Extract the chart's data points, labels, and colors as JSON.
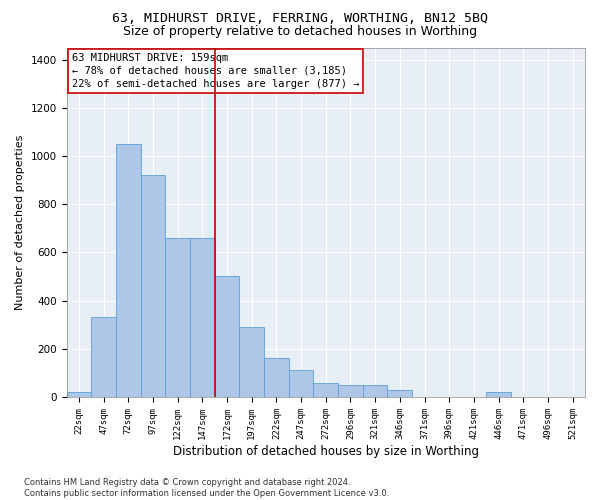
{
  "title1": "63, MIDHURST DRIVE, FERRING, WORTHING, BN12 5BQ",
  "title2": "Size of property relative to detached houses in Worthing",
  "xlabel": "Distribution of detached houses by size in Worthing",
  "ylabel": "Number of detached properties",
  "categories": [
    "22sqm",
    "47sqm",
    "72sqm",
    "97sqm",
    "122sqm",
    "147sqm",
    "172sqm",
    "197sqm",
    "222sqm",
    "247sqm",
    "272sqm",
    "296sqm",
    "321sqm",
    "346sqm",
    "371sqm",
    "396sqm",
    "421sqm",
    "446sqm",
    "471sqm",
    "496sqm",
    "521sqm"
  ],
  "values": [
    20,
    330,
    1050,
    920,
    660,
    660,
    500,
    290,
    160,
    110,
    60,
    50,
    50,
    30,
    0,
    0,
    0,
    20,
    0,
    0,
    0
  ],
  "bar_color": "#aec6e8",
  "bar_edge_color": "#5a9fd4",
  "vline_x": 5.5,
  "vline_color": "#cc0000",
  "annotation_lines": [
    "63 MIDHURST DRIVE: 159sqm",
    "← 78% of detached houses are smaller (3,185)",
    "22% of semi-detached houses are larger (877) →"
  ],
  "annotation_box_color": "#cc0000",
  "ylim": [
    0,
    1450
  ],
  "yticks": [
    0,
    200,
    400,
    600,
    800,
    1000,
    1200,
    1400
  ],
  "background_color": "#e8eef5",
  "grid_color": "#ffffff",
  "footer": "Contains HM Land Registry data © Crown copyright and database right 2024.\nContains public sector information licensed under the Open Government Licence v3.0.",
  "title1_fontsize": 9.5,
  "title2_fontsize": 9,
  "xlabel_fontsize": 8.5,
  "ylabel_fontsize": 8,
  "annotation_fontsize": 7.5,
  "footer_fontsize": 6
}
